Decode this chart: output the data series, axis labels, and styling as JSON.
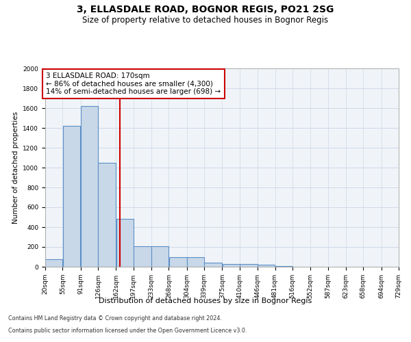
{
  "title": "3, ELLASDALE ROAD, BOGNOR REGIS, PO21 2SG",
  "subtitle": "Size of property relative to detached houses in Bognor Regis",
  "xlabel": "Distribution of detached houses by size in Bognor Regis",
  "ylabel": "Number of detached properties",
  "footnote1": "Contains HM Land Registry data © Crown copyright and database right 2024.",
  "footnote2": "Contains public sector information licensed under the Open Government Licence v3.0.",
  "bar_edges": [
    20,
    55,
    91,
    126,
    162,
    197,
    233,
    268,
    304,
    339,
    375,
    410,
    446,
    481,
    516,
    552,
    587,
    623,
    658,
    694,
    729
  ],
  "bar_heights": [
    75,
    1420,
    1620,
    1050,
    480,
    205,
    205,
    100,
    100,
    38,
    25,
    25,
    20,
    10,
    0,
    0,
    0,
    0,
    0,
    0
  ],
  "bar_color": "#c8d8e8",
  "bar_edge_color": "#5b8fc7",
  "bar_linewidth": 0.8,
  "property_size": 170,
  "vline_color": "#cc0000",
  "vline_linewidth": 1.5,
  "annotation_text": "3 ELLASDALE ROAD: 170sqm\n← 86% of detached houses are smaller (4,300)\n14% of semi-detached houses are larger (698) →",
  "annotation_box_color": "#ffffff",
  "annotation_box_edge_color": "#cc0000",
  "ylim": [
    0,
    2000
  ],
  "yticks": [
    0,
    200,
    400,
    600,
    800,
    1000,
    1200,
    1400,
    1600,
    1800,
    2000
  ],
  "grid_color": "#d0d8e8",
  "background_color": "#f0f4f8",
  "title_fontsize": 10,
  "subtitle_fontsize": 8.5,
  "xlabel_fontsize": 8,
  "ylabel_fontsize": 7.5,
  "tick_fontsize": 6.5,
  "annotation_fontsize": 7.5,
  "footnote_fontsize": 5.8
}
